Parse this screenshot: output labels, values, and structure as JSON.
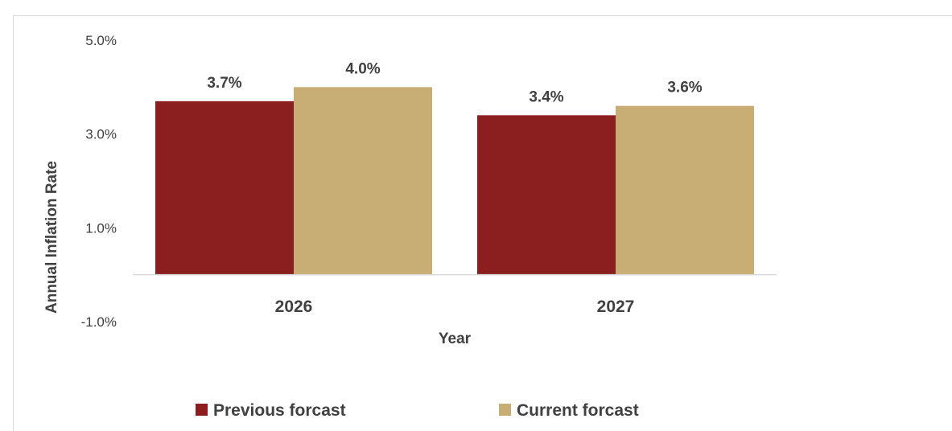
{
  "chart_data": {
    "type": "bar",
    "categories": [
      "2026",
      "2027"
    ],
    "series": [
      {
        "name": "Previous forcast",
        "values": [
          3.7,
          3.4
        ],
        "color": "#8b1f1f"
      },
      {
        "name": "Current forcast",
        "values": [
          4.0,
          3.6
        ],
        "color": "#c8ad74"
      }
    ],
    "data_labels": [
      [
        "3.7%",
        "3.4%"
      ],
      [
        "4.0%",
        "3.6%"
      ]
    ],
    "ylim": [
      -1.0,
      5.0
    ],
    "yticks": [
      5.0,
      3.0,
      1.0,
      -1.0
    ],
    "ytick_labels": [
      "5.0%",
      "3.0%",
      "1.0%",
      "-1.0%"
    ],
    "xlabel": "Year",
    "ylabel": "Annual Inflation Rate",
    "grid": false,
    "legend_position": "bottom"
  }
}
